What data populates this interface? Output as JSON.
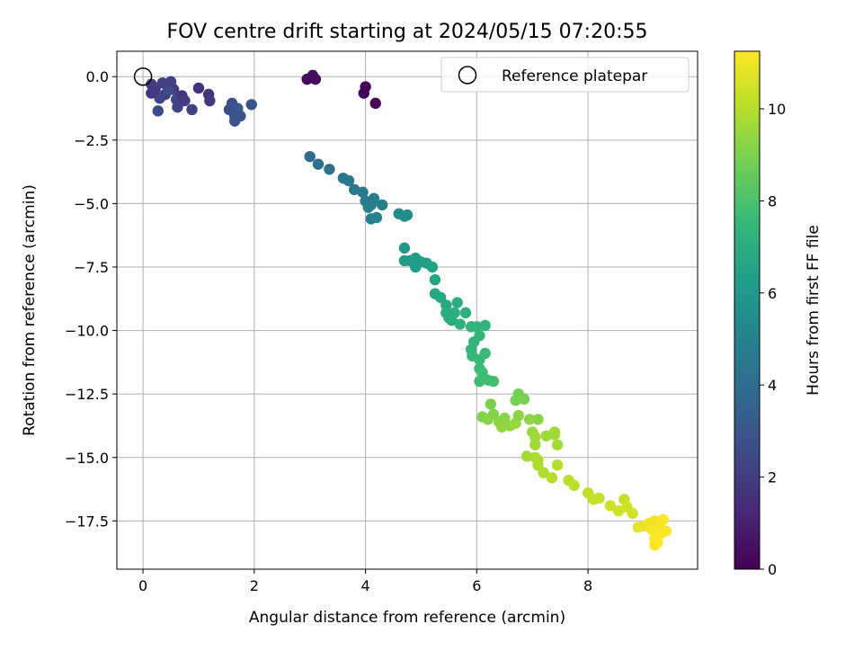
{
  "chart_data": {
    "type": "scatter",
    "title": "FOV centre drift starting at 2024/05/15 07:20:55",
    "xlabel": "Angular distance from reference (arcmin)",
    "ylabel": "Rotation from reference (arcmin)",
    "xlim": [
      -0.47,
      9.97
    ],
    "ylim": [
      -19.4,
      1.0
    ],
    "xticks": [
      0,
      2,
      4,
      6,
      8
    ],
    "xtick_labels": [
      "0",
      "2",
      "4",
      "6",
      "8"
    ],
    "yticks": [
      0.0,
      -2.5,
      -5.0,
      -7.5,
      -10.0,
      -12.5,
      -15.0,
      -17.5
    ],
    "ytick_labels": [
      "0.0",
      "−2.5",
      "−5.0",
      "−7.5",
      "−10.0",
      "−12.5",
      "−15.0",
      "−17.5"
    ],
    "grid": true,
    "legend": {
      "position": "top-right",
      "entries": [
        "Reference platepar"
      ]
    },
    "reference_point": {
      "x": 0.0,
      "y": 0.0,
      "label": "Reference platepar"
    },
    "colorbar": {
      "label": "Hours from first FF file",
      "range": [
        0,
        11.25
      ],
      "ticks": [
        0,
        2,
        4,
        6,
        8,
        10
      ],
      "tick_labels": [
        "0",
        "2",
        "4",
        "6",
        "8",
        "10"
      ],
      "colormap": "viridis",
      "colors": [
        "#440154",
        "#482878",
        "#3e4989",
        "#31688e",
        "#26828e",
        "#1f9e89",
        "#35b779",
        "#6ece58",
        "#b5de2b",
        "#fde725"
      ]
    },
    "points": [
      {
        "x": 2.95,
        "y": -0.1,
        "t": 0.2
      },
      {
        "x": 3.05,
        "y": 0.05,
        "t": 0.3
      },
      {
        "x": 3.1,
        "y": -0.1,
        "t": 0.35
      },
      {
        "x": 4.0,
        "y": -0.4,
        "t": 0.1
      },
      {
        "x": 3.97,
        "y": -0.65,
        "t": 0.15
      },
      {
        "x": 4.18,
        "y": -1.05,
        "t": 0.05
      },
      {
        "x": 0.15,
        "y": -0.3,
        "t": 2.0
      },
      {
        "x": 0.22,
        "y": -0.5,
        "t": 1.9
      },
      {
        "x": 0.35,
        "y": -0.25,
        "t": 2.1
      },
      {
        "x": 0.5,
        "y": -0.2,
        "t": 2.2
      },
      {
        "x": 0.55,
        "y": -0.5,
        "t": 2.0
      },
      {
        "x": 0.4,
        "y": -0.7,
        "t": 1.8
      },
      {
        "x": 0.3,
        "y": -0.85,
        "t": 2.3
      },
      {
        "x": 0.6,
        "y": -0.9,
        "t": 2.4
      },
      {
        "x": 0.7,
        "y": -0.75,
        "t": 1.7
      },
      {
        "x": 0.27,
        "y": -1.35,
        "t": 2.5
      },
      {
        "x": 0.62,
        "y": -1.2,
        "t": 2.3
      },
      {
        "x": 0.75,
        "y": -0.95,
        "t": 2.0
      },
      {
        "x": 0.88,
        "y": -1.3,
        "t": 2.2
      },
      {
        "x": 0.15,
        "y": -0.65,
        "t": 1.9
      },
      {
        "x": 1.0,
        "y": -0.45,
        "t": 1.6
      },
      {
        "x": 1.18,
        "y": -0.7,
        "t": 1.7
      },
      {
        "x": 1.2,
        "y": -0.95,
        "t": 1.8
      },
      {
        "x": 0.45,
        "y": -0.55,
        "t": 2.6
      },
      {
        "x": 1.55,
        "y": -1.3,
        "t": 2.7
      },
      {
        "x": 1.6,
        "y": -1.05,
        "t": 2.8
      },
      {
        "x": 1.65,
        "y": -1.55,
        "t": 2.9
      },
      {
        "x": 1.7,
        "y": -1.25,
        "t": 3.0
      },
      {
        "x": 1.65,
        "y": -1.75,
        "t": 2.9
      },
      {
        "x": 1.75,
        "y": -1.55,
        "t": 3.0
      },
      {
        "x": 1.95,
        "y": -1.1,
        "t": 3.1
      },
      {
        "x": 3.0,
        "y": -3.15,
        "t": 4.0
      },
      {
        "x": 3.15,
        "y": -3.45,
        "t": 4.1
      },
      {
        "x": 3.35,
        "y": -3.65,
        "t": 4.2
      },
      {
        "x": 3.6,
        "y": -4.0,
        "t": 4.4
      },
      {
        "x": 3.7,
        "y": -4.1,
        "t": 4.5
      },
      {
        "x": 3.8,
        "y": -4.45,
        "t": 4.5
      },
      {
        "x": 3.95,
        "y": -4.55,
        "t": 4.6
      },
      {
        "x": 4.0,
        "y": -4.9,
        "t": 4.7
      },
      {
        "x": 4.1,
        "y": -5.05,
        "t": 4.8
      },
      {
        "x": 4.15,
        "y": -4.8,
        "t": 4.7
      },
      {
        "x": 4.05,
        "y": -5.15,
        "t": 4.9
      },
      {
        "x": 4.1,
        "y": -5.6,
        "t": 5.0
      },
      {
        "x": 4.2,
        "y": -5.55,
        "t": 5.0
      },
      {
        "x": 4.3,
        "y": -5.05,
        "t": 4.9
      },
      {
        "x": 4.6,
        "y": -5.4,
        "t": 5.4
      },
      {
        "x": 4.7,
        "y": -5.5,
        "t": 5.5
      },
      {
        "x": 4.75,
        "y": -5.45,
        "t": 5.5
      },
      {
        "x": 4.7,
        "y": -6.75,
        "t": 6.0
      },
      {
        "x": 4.7,
        "y": -7.25,
        "t": 6.1
      },
      {
        "x": 4.8,
        "y": -7.25,
        "t": 6.2
      },
      {
        "x": 4.9,
        "y": -7.15,
        "t": 6.2
      },
      {
        "x": 4.9,
        "y": -7.5,
        "t": 6.3
      },
      {
        "x": 5.0,
        "y": -7.3,
        "t": 6.3
      },
      {
        "x": 5.1,
        "y": -7.35,
        "t": 6.4
      },
      {
        "x": 5.2,
        "y": -7.5,
        "t": 6.5
      },
      {
        "x": 5.25,
        "y": -8.0,
        "t": 6.6
      },
      {
        "x": 5.25,
        "y": -8.55,
        "t": 6.7
      },
      {
        "x": 5.35,
        "y": -8.7,
        "t": 6.7
      },
      {
        "x": 5.45,
        "y": -9.0,
        "t": 6.8
      },
      {
        "x": 5.45,
        "y": -9.3,
        "t": 6.9
      },
      {
        "x": 5.5,
        "y": -9.5,
        "t": 6.9
      },
      {
        "x": 5.55,
        "y": -9.6,
        "t": 7.0
      },
      {
        "x": 5.6,
        "y": -9.3,
        "t": 7.0
      },
      {
        "x": 5.65,
        "y": -8.9,
        "t": 6.9
      },
      {
        "x": 5.7,
        "y": -9.75,
        "t": 7.1
      },
      {
        "x": 5.8,
        "y": -9.3,
        "t": 7.1
      },
      {
        "x": 5.9,
        "y": -9.85,
        "t": 7.2
      },
      {
        "x": 6.0,
        "y": -9.85,
        "t": 7.3
      },
      {
        "x": 6.15,
        "y": -9.8,
        "t": 7.3
      },
      {
        "x": 5.95,
        "y": -10.45,
        "t": 7.4
      },
      {
        "x": 5.9,
        "y": -10.75,
        "t": 7.4
      },
      {
        "x": 5.92,
        "y": -11.0,
        "t": 7.5
      },
      {
        "x": 6.05,
        "y": -11.15,
        "t": 7.5
      },
      {
        "x": 6.15,
        "y": -10.9,
        "t": 7.6
      },
      {
        "x": 6.05,
        "y": -11.5,
        "t": 7.6
      },
      {
        "x": 6.1,
        "y": -11.65,
        "t": 7.7
      },
      {
        "x": 6.05,
        "y": -12.0,
        "t": 7.7
      },
      {
        "x": 6.2,
        "y": -11.95,
        "t": 7.8
      },
      {
        "x": 6.3,
        "y": -12.0,
        "t": 7.8
      },
      {
        "x": 6.05,
        "y": -10.2,
        "t": 7.4
      },
      {
        "x": 6.25,
        "y": -12.9,
        "t": 9.0
      },
      {
        "x": 6.1,
        "y": -13.4,
        "t": 9.1
      },
      {
        "x": 6.2,
        "y": -13.5,
        "t": 9.2
      },
      {
        "x": 6.3,
        "y": -13.3,
        "t": 9.1
      },
      {
        "x": 6.4,
        "y": -13.6,
        "t": 9.3
      },
      {
        "x": 6.45,
        "y": -13.8,
        "t": 9.4
      },
      {
        "x": 6.5,
        "y": -13.45,
        "t": 9.2
      },
      {
        "x": 6.6,
        "y": -13.75,
        "t": 9.4
      },
      {
        "x": 6.7,
        "y": -13.65,
        "t": 9.5
      },
      {
        "x": 6.75,
        "y": -13.35,
        "t": 9.3
      },
      {
        "x": 6.7,
        "y": -12.75,
        "t": 8.9
      },
      {
        "x": 6.75,
        "y": -12.5,
        "t": 8.8
      },
      {
        "x": 6.85,
        "y": -12.7,
        "t": 8.9
      },
      {
        "x": 6.95,
        "y": -13.5,
        "t": 9.3
      },
      {
        "x": 7.0,
        "y": -14.0,
        "t": 9.5
      },
      {
        "x": 7.05,
        "y": -14.2,
        "t": 9.6
      },
      {
        "x": 7.1,
        "y": -13.5,
        "t": 9.2
      },
      {
        "x": 7.05,
        "y": -14.5,
        "t": 9.6
      },
      {
        "x": 6.9,
        "y": -14.95,
        "t": 9.7
      },
      {
        "x": 7.05,
        "y": -15.0,
        "t": 9.8
      },
      {
        "x": 7.1,
        "y": -15.3,
        "t": 9.9
      },
      {
        "x": 7.1,
        "y": -15.1,
        "t": 9.9
      },
      {
        "x": 7.25,
        "y": -14.15,
        "t": 9.6
      },
      {
        "x": 7.4,
        "y": -14.1,
        "t": 9.7
      },
      {
        "x": 7.45,
        "y": -14.5,
        "t": 9.7
      },
      {
        "x": 7.4,
        "y": -14.0,
        "t": 9.6
      },
      {
        "x": 7.2,
        "y": -15.6,
        "t": 9.9
      },
      {
        "x": 7.35,
        "y": -15.8,
        "t": 10.0
      },
      {
        "x": 7.45,
        "y": -15.3,
        "t": 10.0
      },
      {
        "x": 7.65,
        "y": -15.9,
        "t": 10.1
      },
      {
        "x": 7.75,
        "y": -16.1,
        "t": 10.1
      },
      {
        "x": 8.0,
        "y": -16.4,
        "t": 10.2
      },
      {
        "x": 8.1,
        "y": -16.65,
        "t": 10.3
      },
      {
        "x": 8.2,
        "y": -16.6,
        "t": 10.3
      },
      {
        "x": 8.4,
        "y": -16.9,
        "t": 10.4
      },
      {
        "x": 8.55,
        "y": -17.1,
        "t": 10.4
      },
      {
        "x": 8.65,
        "y": -16.65,
        "t": 10.3
      },
      {
        "x": 8.7,
        "y": -16.95,
        "t": 10.5
      },
      {
        "x": 8.8,
        "y": -17.2,
        "t": 10.5
      },
      {
        "x": 8.9,
        "y": -17.75,
        "t": 10.8
      },
      {
        "x": 9.0,
        "y": -17.7,
        "t": 10.9
      },
      {
        "x": 9.1,
        "y": -17.6,
        "t": 11.0
      },
      {
        "x": 9.15,
        "y": -17.85,
        "t": 11.1
      },
      {
        "x": 9.2,
        "y": -17.5,
        "t": 11.0
      },
      {
        "x": 9.25,
        "y": -17.75,
        "t": 11.1
      },
      {
        "x": 9.3,
        "y": -17.55,
        "t": 11.1
      },
      {
        "x": 9.35,
        "y": -17.45,
        "t": 11.2
      },
      {
        "x": 9.3,
        "y": -18.0,
        "t": 11.2
      },
      {
        "x": 9.4,
        "y": -17.9,
        "t": 11.2
      },
      {
        "x": 9.2,
        "y": -18.2,
        "t": 11.2
      },
      {
        "x": 9.25,
        "y": -18.35,
        "t": 11.2
      },
      {
        "x": 9.2,
        "y": -18.45,
        "t": 11.25
      }
    ]
  }
}
